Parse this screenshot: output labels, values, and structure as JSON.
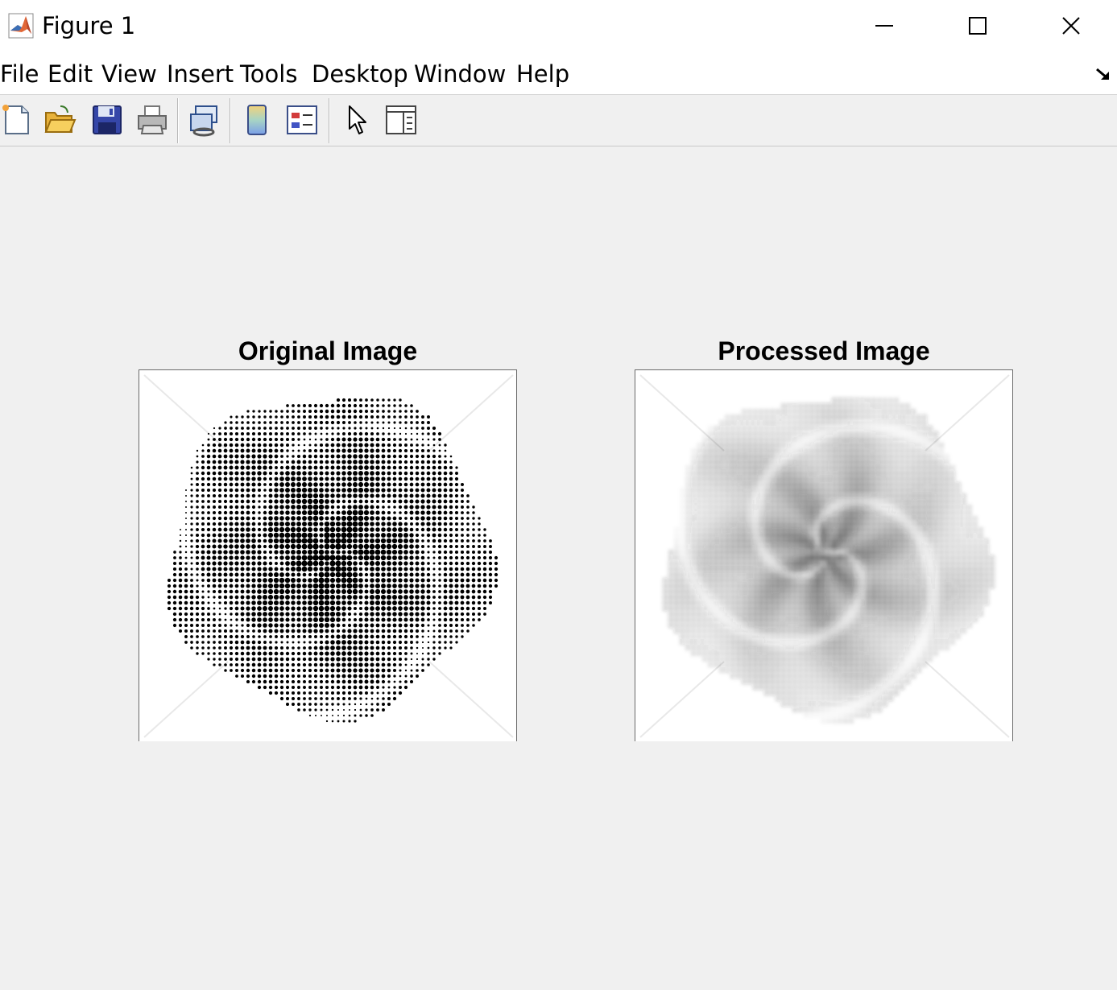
{
  "window": {
    "title": "Figure 1",
    "app_icon": "matlab-logo-icon",
    "controls": [
      "minimize-icon",
      "maximize-icon",
      "close-icon"
    ]
  },
  "menu": {
    "items": [
      "File",
      "Edit",
      "View",
      "Insert",
      "Tools",
      "Desktop",
      "Window",
      "Help"
    ],
    "dock_icon": "dock-figure-icon"
  },
  "toolbar": {
    "buttons": [
      "new-figure-icon",
      "open-file-icon",
      "save-figure-icon",
      "print-figure-icon",
      "link-plot-icon",
      "insert-colorbar-icon",
      "insert-legend-icon",
      "edit-plot-icon",
      "property-inspector-icon"
    ]
  },
  "axes": [
    {
      "title": "Original Image",
      "render": "halftone dots"
    },
    {
      "title": "Processed Image",
      "render": "blurred halftone"
    }
  ],
  "colors": {
    "figure_bg": "#f0f0f0",
    "titlebar_bg": "#ffffff",
    "axes_bg": "#ffffff"
  }
}
